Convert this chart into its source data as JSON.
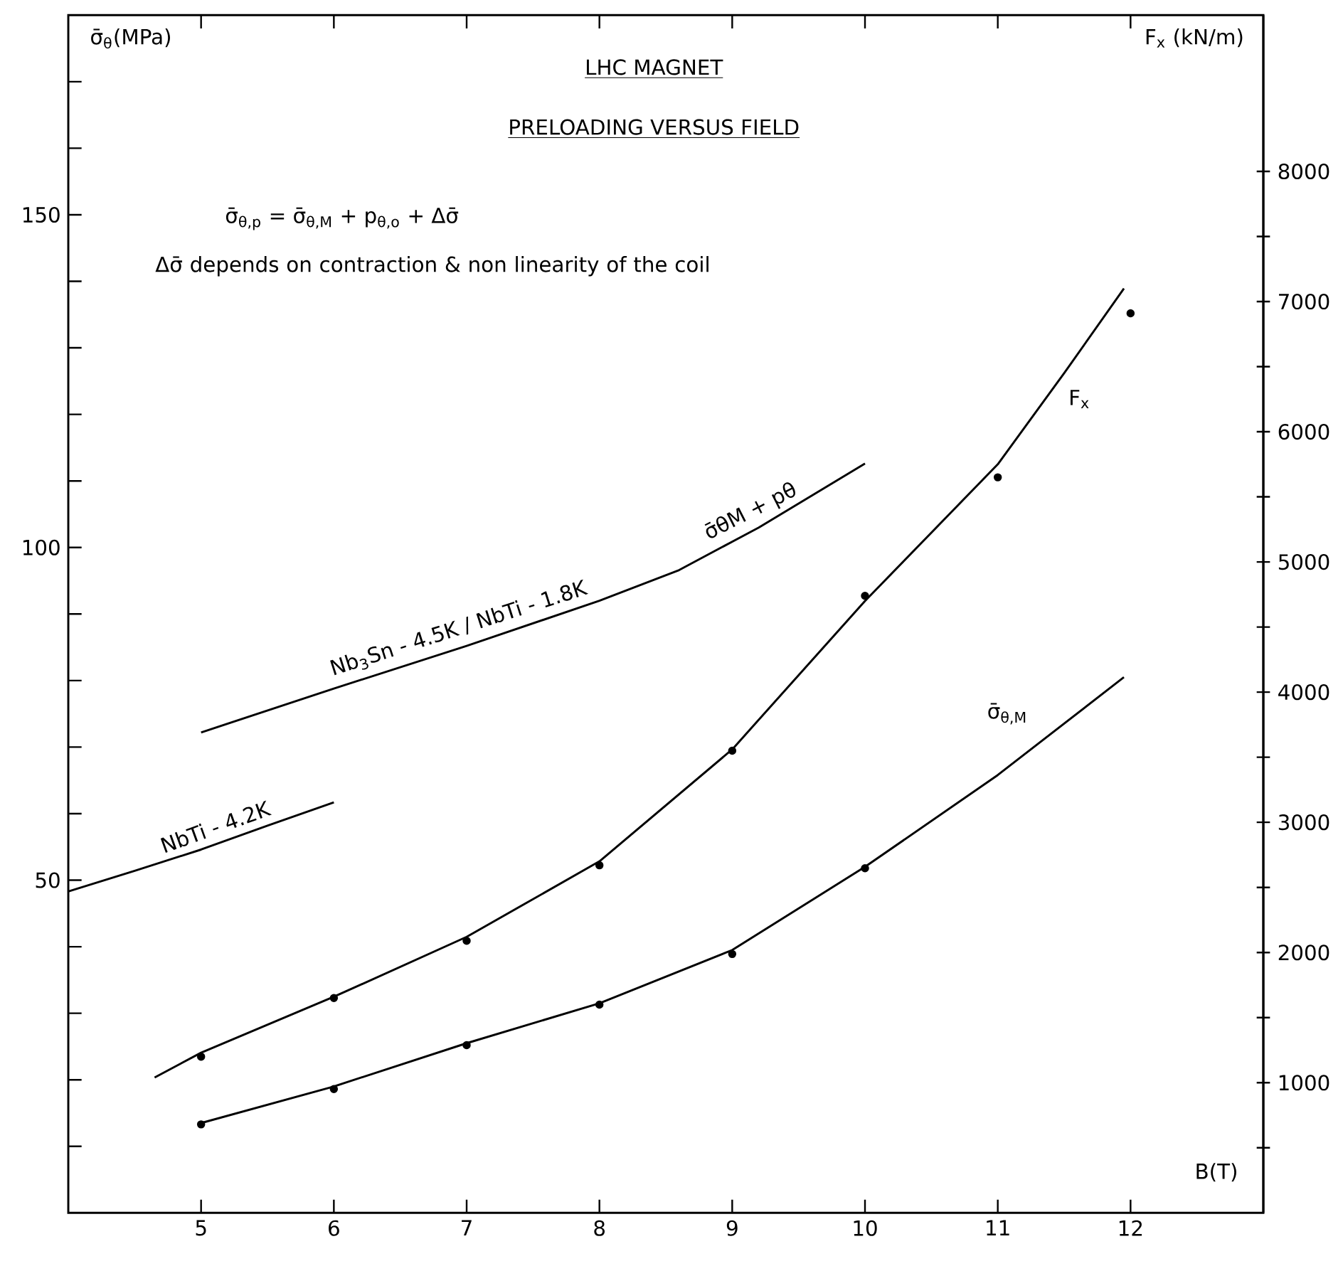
{
  "chart_data": {
    "type": "line",
    "title": "LHC MAGNET",
    "subtitle": "PRELOADING VERSUS FIELD",
    "xlabel": "B(T)",
    "ylabel": "σ̄$_{θ}$(MPa)",
    "y2label": "F$_{x}$ (kN/m)",
    "annotations": [
      "σ̄$_{θ,p}$ = σ̄$_{θ,M}$ + p$_{θ,o}$ + Δσ̄",
      "Δσ̄ depends on contraction & non linearity of the coil",
      {
        "text": "σ̄θM + pθ",
        "x": 9.2,
        "y": 103
      }
    ],
    "xlim": [
      4,
      13
    ],
    "xticks": [
      5,
      6,
      7,
      8,
      9,
      10,
      11,
      12
    ],
    "ylim": [
      0,
      180
    ],
    "yticks": [
      {
        "value": 10,
        "label": null
      },
      {
        "value": 20,
        "label": null
      },
      {
        "value": 30,
        "label": null
      },
      {
        "value": 40,
        "label": null
      },
      50,
      {
        "value": 60,
        "label": null
      },
      {
        "value": 70,
        "label": null
      },
      {
        "value": 80,
        "label": null
      },
      {
        "value": 90,
        "label": null
      },
      100,
      {
        "value": 110,
        "label": null
      },
      {
        "value": 120,
        "label": null
      },
      {
        "value": 130,
        "label": null
      },
      {
        "value": 140,
        "label": null
      },
      150,
      {
        "value": 160,
        "label": null
      },
      {
        "value": 170,
        "label": null
      }
    ],
    "y2lim": [
      0,
      9200
    ],
    "y2ticks": [
      {
        "value": 500,
        "label": null
      },
      1000,
      {
        "value": 1500,
        "label": null
      },
      2000,
      {
        "value": 2500,
        "label": null
      },
      3000,
      {
        "value": 3500,
        "label": null
      },
      4000,
      {
        "value": 4500,
        "label": null
      },
      5000,
      {
        "value": 5500,
        "label": null
      },
      6000,
      {
        "value": 6500,
        "label": null
      },
      7000,
      {
        "value": 7500,
        "label": null
      },
      8000
    ],
    "series": [
      {
        "name": "NbTi - 4.2K",
        "color": "#000000",
        "x": [
          4,
          4.5,
          5,
          5.5,
          6
        ],
        "values": [
          48.3,
          51.4,
          54.6,
          58.2,
          61.7
        ]
      },
      {
        "name": "Nb$_{3}$Sn - 4.5K / NbTi - 1.8K",
        "color": "#000000",
        "x": [
          5,
          6,
          7,
          8,
          8.6,
          9.2,
          10
        ],
        "values": [
          72.2,
          78.8,
          85.2,
          92,
          96.6,
          103,
          112.6
        ]
      },
      {
        "name": "F$_{x}$",
        "axis": "y2",
        "color": "#000000",
        "x": [
          4.65,
          5,
          6,
          7,
          8,
          9,
          10,
          11,
          11.5,
          11.95
        ],
        "values": [
          1040,
          1230,
          1660,
          2120,
          2700,
          3560,
          4700,
          5750,
          6450,
          7100
        ]
      },
      {
        "type": "scatter",
        "axis": "y2",
        "marker": "circle",
        "color": "#000000",
        "x": [
          5,
          6,
          7,
          8,
          9,
          10,
          11,
          12
        ],
        "values": [
          1200,
          1650,
          2090,
          2670,
          3550,
          4740,
          5650,
          6910
        ]
      },
      {
        "name": "σ̄$_{θ,M}$",
        "color": "#000000",
        "x": [
          5,
          6,
          7,
          8,
          9,
          10,
          11,
          11.95
        ],
        "values": [
          13.5,
          19,
          25.5,
          31.5,
          39.5,
          52,
          65.8,
          80.5
        ]
      },
      {
        "type": "scatter",
        "marker": "circle",
        "color": "#000000",
        "x": [
          5,
          6,
          7,
          8,
          9,
          10
        ],
        "values": [
          13.3,
          18.6,
          25.2,
          31.3,
          38.9,
          51.8
        ]
      }
    ]
  }
}
